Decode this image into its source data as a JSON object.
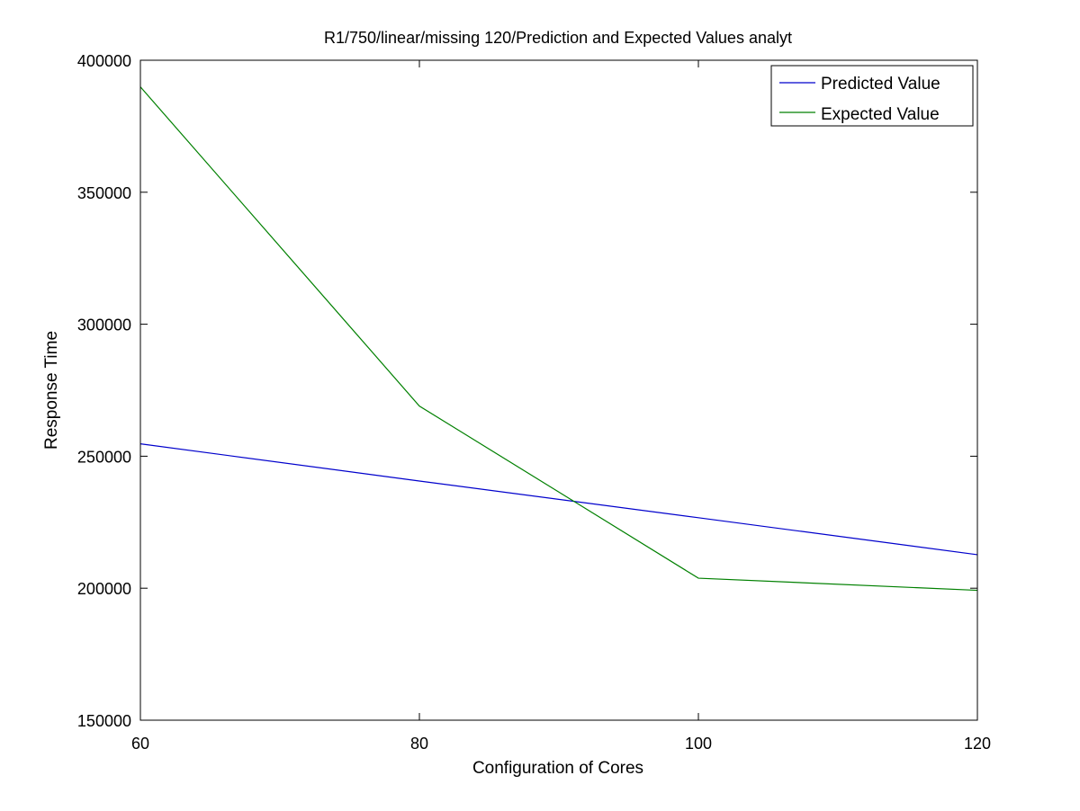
{
  "chart_data": {
    "type": "line",
    "title": "R1/750/linear/missing 120/Prediction and Expected Values analyt",
    "xlabel": "Configuration of Cores",
    "ylabel": "Response Time",
    "x": [
      60,
      80,
      100,
      120
    ],
    "xlim": [
      60,
      120
    ],
    "ylim": [
      150000,
      400000
    ],
    "xticks": [
      60,
      80,
      100,
      120
    ],
    "yticks": [
      150000,
      200000,
      250000,
      300000,
      350000,
      400000
    ],
    "xtick_labels": [
      "60",
      "80",
      "100",
      "120"
    ],
    "ytick_labels": [
      "150000",
      "200000",
      "250000",
      "300000",
      "350000",
      "400000"
    ],
    "grid": false,
    "legend_position": "top-right",
    "series": [
      {
        "name": "Predicted Value",
        "color": "#0000cc",
        "values": [
          254700,
          240600,
          226700,
          212700
        ]
      },
      {
        "name": "Expected Value",
        "color": "#008000",
        "values": [
          389900,
          269000,
          203800,
          199200
        ]
      }
    ]
  }
}
